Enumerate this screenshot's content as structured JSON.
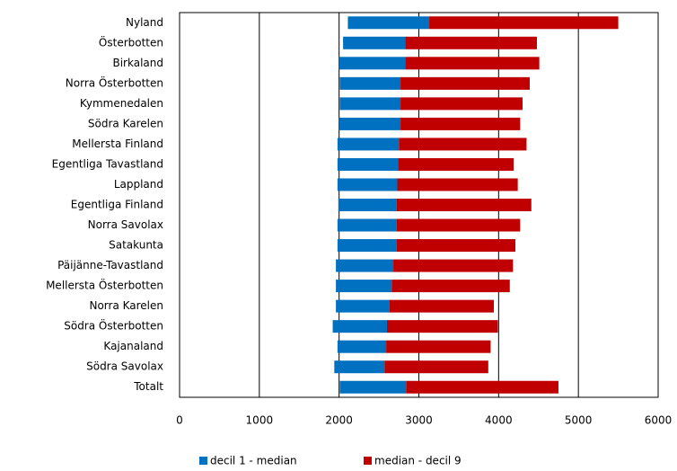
{
  "chart_data": {
    "type": "floating-bar",
    "categories": [
      "Nyland",
      "Österbotten",
      "Birkaland",
      "Norra Österbotten",
      "Kymmenedalen",
      "Södra Karelen",
      "Mellersta Finland",
      "Egentliga Tavastland",
      "Lappland",
      "Egentliga Finland",
      "Norra Savolax",
      "Satakunta",
      "Päijänne-Tavastland",
      "Mellersta Österbotten",
      "Norra Karelen",
      "Södra Österbotten",
      "Kajanaland",
      "Södra Savolax",
      "Totalt"
    ],
    "decil_1": [
      2110,
      2050,
      2000,
      2010,
      2010,
      2000,
      1980,
      1980,
      1980,
      1990,
      1980,
      1980,
      1960,
      1960,
      1960,
      1920,
      1980,
      1940,
      2010
    ],
    "median": [
      3130,
      2830,
      2830,
      2770,
      2770,
      2770,
      2750,
      2740,
      2730,
      2720,
      2720,
      2720,
      2680,
      2660,
      2630,
      2600,
      2590,
      2570,
      2840
    ],
    "decil_9": [
      5500,
      4480,
      4510,
      4390,
      4300,
      4270,
      4350,
      4190,
      4240,
      4410,
      4270,
      4210,
      4180,
      4140,
      3940,
      3990,
      3900,
      3870,
      4750
    ],
    "legend": [
      {
        "name": "decil 1 - median",
        "color": "#0070c0"
      },
      {
        "name": "median - decil 9",
        "color": "#c00000"
      }
    ],
    "xlim": [
      0,
      6000
    ],
    "xticks": [
      0,
      1000,
      2000,
      3000,
      4000,
      5000,
      6000
    ],
    "grid": true
  }
}
